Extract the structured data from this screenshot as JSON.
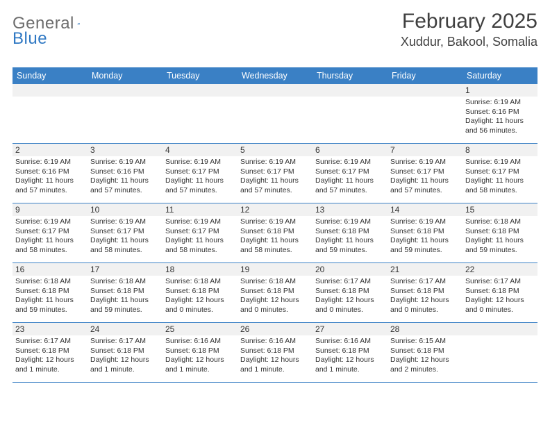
{
  "logo": {
    "general": "General",
    "blue": "Blue"
  },
  "title": "February 2025",
  "location": "Xuddur, Bakool, Somalia",
  "colors": {
    "header_bar": "#3a80c5",
    "header_text": "#ffffff",
    "logo_gray": "#6d6d6d",
    "logo_blue": "#2f78c3",
    "title_color": "#404040",
    "body_text": "#333333",
    "row_divider": "#3a80c5",
    "num_band": "#f1f1f1",
    "background": "#ffffff"
  },
  "typography": {
    "title_fontsize": 30,
    "location_fontsize": 18,
    "weekday_fontsize": 12.5,
    "daynum_fontsize": 12,
    "cell_fontsize": 10.5,
    "logo_fontsize": 24
  },
  "weekdays": [
    "Sunday",
    "Monday",
    "Tuesday",
    "Wednesday",
    "Thursday",
    "Friday",
    "Saturday"
  ],
  "weeks": [
    [
      {
        "n": "",
        "sunrise": "",
        "sunset": "",
        "daylight": ""
      },
      {
        "n": "",
        "sunrise": "",
        "sunset": "",
        "daylight": ""
      },
      {
        "n": "",
        "sunrise": "",
        "sunset": "",
        "daylight": ""
      },
      {
        "n": "",
        "sunrise": "",
        "sunset": "",
        "daylight": ""
      },
      {
        "n": "",
        "sunrise": "",
        "sunset": "",
        "daylight": ""
      },
      {
        "n": "",
        "sunrise": "",
        "sunset": "",
        "daylight": ""
      },
      {
        "n": "1",
        "sunrise": "Sunrise: 6:19 AM",
        "sunset": "Sunset: 6:16 PM",
        "daylight": "Daylight: 11 hours and 56 minutes."
      }
    ],
    [
      {
        "n": "2",
        "sunrise": "Sunrise: 6:19 AM",
        "sunset": "Sunset: 6:16 PM",
        "daylight": "Daylight: 11 hours and 57 minutes."
      },
      {
        "n": "3",
        "sunrise": "Sunrise: 6:19 AM",
        "sunset": "Sunset: 6:16 PM",
        "daylight": "Daylight: 11 hours and 57 minutes."
      },
      {
        "n": "4",
        "sunrise": "Sunrise: 6:19 AM",
        "sunset": "Sunset: 6:17 PM",
        "daylight": "Daylight: 11 hours and 57 minutes."
      },
      {
        "n": "5",
        "sunrise": "Sunrise: 6:19 AM",
        "sunset": "Sunset: 6:17 PM",
        "daylight": "Daylight: 11 hours and 57 minutes."
      },
      {
        "n": "6",
        "sunrise": "Sunrise: 6:19 AM",
        "sunset": "Sunset: 6:17 PM",
        "daylight": "Daylight: 11 hours and 57 minutes."
      },
      {
        "n": "7",
        "sunrise": "Sunrise: 6:19 AM",
        "sunset": "Sunset: 6:17 PM",
        "daylight": "Daylight: 11 hours and 57 minutes."
      },
      {
        "n": "8",
        "sunrise": "Sunrise: 6:19 AM",
        "sunset": "Sunset: 6:17 PM",
        "daylight": "Daylight: 11 hours and 58 minutes."
      }
    ],
    [
      {
        "n": "9",
        "sunrise": "Sunrise: 6:19 AM",
        "sunset": "Sunset: 6:17 PM",
        "daylight": "Daylight: 11 hours and 58 minutes."
      },
      {
        "n": "10",
        "sunrise": "Sunrise: 6:19 AM",
        "sunset": "Sunset: 6:17 PM",
        "daylight": "Daylight: 11 hours and 58 minutes."
      },
      {
        "n": "11",
        "sunrise": "Sunrise: 6:19 AM",
        "sunset": "Sunset: 6:17 PM",
        "daylight": "Daylight: 11 hours and 58 minutes."
      },
      {
        "n": "12",
        "sunrise": "Sunrise: 6:19 AM",
        "sunset": "Sunset: 6:18 PM",
        "daylight": "Daylight: 11 hours and 58 minutes."
      },
      {
        "n": "13",
        "sunrise": "Sunrise: 6:19 AM",
        "sunset": "Sunset: 6:18 PM",
        "daylight": "Daylight: 11 hours and 59 minutes."
      },
      {
        "n": "14",
        "sunrise": "Sunrise: 6:19 AM",
        "sunset": "Sunset: 6:18 PM",
        "daylight": "Daylight: 11 hours and 59 minutes."
      },
      {
        "n": "15",
        "sunrise": "Sunrise: 6:18 AM",
        "sunset": "Sunset: 6:18 PM",
        "daylight": "Daylight: 11 hours and 59 minutes."
      }
    ],
    [
      {
        "n": "16",
        "sunrise": "Sunrise: 6:18 AM",
        "sunset": "Sunset: 6:18 PM",
        "daylight": "Daylight: 11 hours and 59 minutes."
      },
      {
        "n": "17",
        "sunrise": "Sunrise: 6:18 AM",
        "sunset": "Sunset: 6:18 PM",
        "daylight": "Daylight: 11 hours and 59 minutes."
      },
      {
        "n": "18",
        "sunrise": "Sunrise: 6:18 AM",
        "sunset": "Sunset: 6:18 PM",
        "daylight": "Daylight: 12 hours and 0 minutes."
      },
      {
        "n": "19",
        "sunrise": "Sunrise: 6:18 AM",
        "sunset": "Sunset: 6:18 PM",
        "daylight": "Daylight: 12 hours and 0 minutes."
      },
      {
        "n": "20",
        "sunrise": "Sunrise: 6:17 AM",
        "sunset": "Sunset: 6:18 PM",
        "daylight": "Daylight: 12 hours and 0 minutes."
      },
      {
        "n": "21",
        "sunrise": "Sunrise: 6:17 AM",
        "sunset": "Sunset: 6:18 PM",
        "daylight": "Daylight: 12 hours and 0 minutes."
      },
      {
        "n": "22",
        "sunrise": "Sunrise: 6:17 AM",
        "sunset": "Sunset: 6:18 PM",
        "daylight": "Daylight: 12 hours and 0 minutes."
      }
    ],
    [
      {
        "n": "23",
        "sunrise": "Sunrise: 6:17 AM",
        "sunset": "Sunset: 6:18 PM",
        "daylight": "Daylight: 12 hours and 1 minute."
      },
      {
        "n": "24",
        "sunrise": "Sunrise: 6:17 AM",
        "sunset": "Sunset: 6:18 PM",
        "daylight": "Daylight: 12 hours and 1 minute."
      },
      {
        "n": "25",
        "sunrise": "Sunrise: 6:16 AM",
        "sunset": "Sunset: 6:18 PM",
        "daylight": "Daylight: 12 hours and 1 minute."
      },
      {
        "n": "26",
        "sunrise": "Sunrise: 6:16 AM",
        "sunset": "Sunset: 6:18 PM",
        "daylight": "Daylight: 12 hours and 1 minute."
      },
      {
        "n": "27",
        "sunrise": "Sunrise: 6:16 AM",
        "sunset": "Sunset: 6:18 PM",
        "daylight": "Daylight: 12 hours and 1 minute."
      },
      {
        "n": "28",
        "sunrise": "Sunrise: 6:15 AM",
        "sunset": "Sunset: 6:18 PM",
        "daylight": "Daylight: 12 hours and 2 minutes."
      },
      {
        "n": "",
        "sunrise": "",
        "sunset": "",
        "daylight": ""
      }
    ]
  ]
}
